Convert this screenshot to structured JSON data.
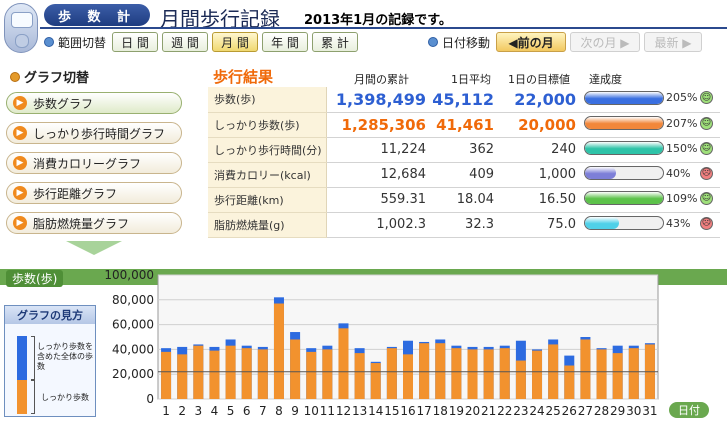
{
  "header": {
    "app_title": "歩 数 計",
    "page_title": "月間歩行記録",
    "subtitle": "2013年1月の記録です。"
  },
  "range_switch": {
    "label": "範囲切替",
    "buttons": [
      "日 間",
      "週 間",
      "月 間",
      "年 間",
      "累 計"
    ],
    "active_index": 2
  },
  "date_nav": {
    "label": "日付移動",
    "prev": "◀前の月",
    "next": "次の月 ▶",
    "latest": "最新 ▶"
  },
  "graph_switch": {
    "title": "グラフ切替",
    "items": [
      "歩数グラフ",
      "しっかり歩行時間グラフ",
      "消費カロリーグラフ",
      "歩行距離グラフ",
      "脂肪燃焼量グラフ"
    ],
    "active_index": 0
  },
  "results": {
    "title": "歩行結果",
    "col_headers": [
      "月間の累計",
      "1日平均",
      "1日の目標値",
      "達成度"
    ],
    "rows": [
      {
        "name": "歩数(歩)",
        "total": "1,398,499",
        "avg": "45,112",
        "goal": "22,000",
        "pct": "205%",
        "ratio": 1.0,
        "color": "#3a6fe0",
        "face": "happy",
        "style": "blue"
      },
      {
        "name": "しっかり歩数(歩)",
        "total": "1,285,306",
        "avg": "41,461",
        "goal": "20,000",
        "pct": "207%",
        "ratio": 1.0,
        "color": "#f2873a",
        "face": "happy",
        "style": "orange"
      },
      {
        "name": "しっかり歩行時間(分)",
        "total": "11,224",
        "avg": "362",
        "goal": "240",
        "pct": "150%",
        "ratio": 1.0,
        "color": "#2ec3a8",
        "face": "happy",
        "style": ""
      },
      {
        "name": "消費カロリー(kcal)",
        "total": "12,684",
        "avg": "409",
        "goal": "1,000",
        "pct": "40%",
        "ratio": 0.4,
        "color": "#7d7fd8",
        "face": "sad",
        "style": ""
      },
      {
        "name": "歩行距離(km)",
        "total": "559.31",
        "avg": "18.04",
        "goal": "16.50",
        "pct": "109%",
        "ratio": 1.0,
        "color": "#5cc24a",
        "face": "happy",
        "style": ""
      },
      {
        "name": "脂肪燃焼量(g)",
        "total": "1,002.3",
        "avg": "32.3",
        "goal": "75.0",
        "pct": "43%",
        "ratio": 0.43,
        "color": "#4fd0e8",
        "face": "sad",
        "style": ""
      }
    ]
  },
  "guide": {
    "title": "グラフの見方",
    "label_total": "しっかり歩数を含めた全体の歩数",
    "label_firm": "しっかり歩数"
  },
  "chart_data": {
    "type": "bar",
    "ylabel": "歩数(歩)",
    "xlabel": "日付",
    "ylim": [
      0,
      100000
    ],
    "yticks": [
      "0",
      "20,000",
      "40,000",
      "60,000",
      "80,000",
      "100,000"
    ],
    "goal_line": 22000,
    "categories": [
      "1",
      "2",
      "3",
      "4",
      "5",
      "6",
      "7",
      "8",
      "9",
      "10",
      "11",
      "12",
      "13",
      "14",
      "15",
      "16",
      "17",
      "18",
      "19",
      "20",
      "21",
      "22",
      "23",
      "24",
      "25",
      "26",
      "27",
      "28",
      "29",
      "30",
      "31"
    ],
    "series": [
      {
        "name": "しっかり歩数",
        "values": [
          38000,
          36000,
          43000,
          39000,
          43000,
          41000,
          40000,
          77000,
          48000,
          38000,
          40000,
          57000,
          37000,
          29000,
          41000,
          36000,
          45000,
          45000,
          41000,
          40000,
          40000,
          41000,
          31000,
          39000,
          44000,
          27000,
          48000,
          40000,
          37000,
          41000,
          44000
        ],
        "color": "#f2922e"
      },
      {
        "name": "全体の歩数",
        "values": [
          41000,
          42000,
          44000,
          42000,
          48000,
          43000,
          42000,
          82000,
          54000,
          41000,
          43000,
          61000,
          41000,
          30000,
          42000,
          47000,
          46000,
          48000,
          43000,
          42000,
          42000,
          43000,
          47000,
          40000,
          48000,
          35000,
          50000,
          41000,
          43000,
          43000,
          45000
        ],
        "color": "#2d6be0"
      }
    ]
  }
}
